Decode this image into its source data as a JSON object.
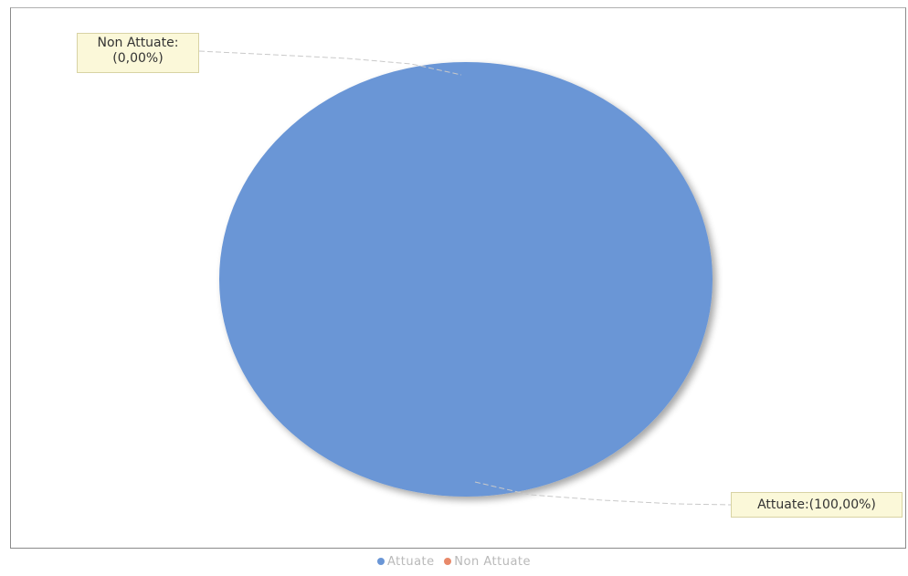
{
  "chart_data": {
    "type": "pie",
    "title": "",
    "series": [
      {
        "name": "",
        "values": [
          100,
          0
        ]
      }
    ],
    "categories": [
      "Attuate",
      "Non Attuate"
    ],
    "slices": [
      {
        "label": "Attuate",
        "value": 100.0,
        "color": "#6a96d6"
      },
      {
        "label": "Non Attuate",
        "value": 0.0,
        "color": "#e8896a"
      }
    ],
    "data_labels": [
      {
        "category": "Non Attuate",
        "line1": "Non Attuate:",
        "line2": "(0,00%)"
      },
      {
        "category": "Attuate",
        "text": "Attuate:(100,00%)"
      }
    ],
    "legend": {
      "placement": "bottom-center",
      "entries": [
        {
          "label": "Attuate",
          "color": "#6a96d6"
        },
        {
          "label": "Non Attuate",
          "color": "#e8896a"
        }
      ]
    },
    "grid": false
  }
}
